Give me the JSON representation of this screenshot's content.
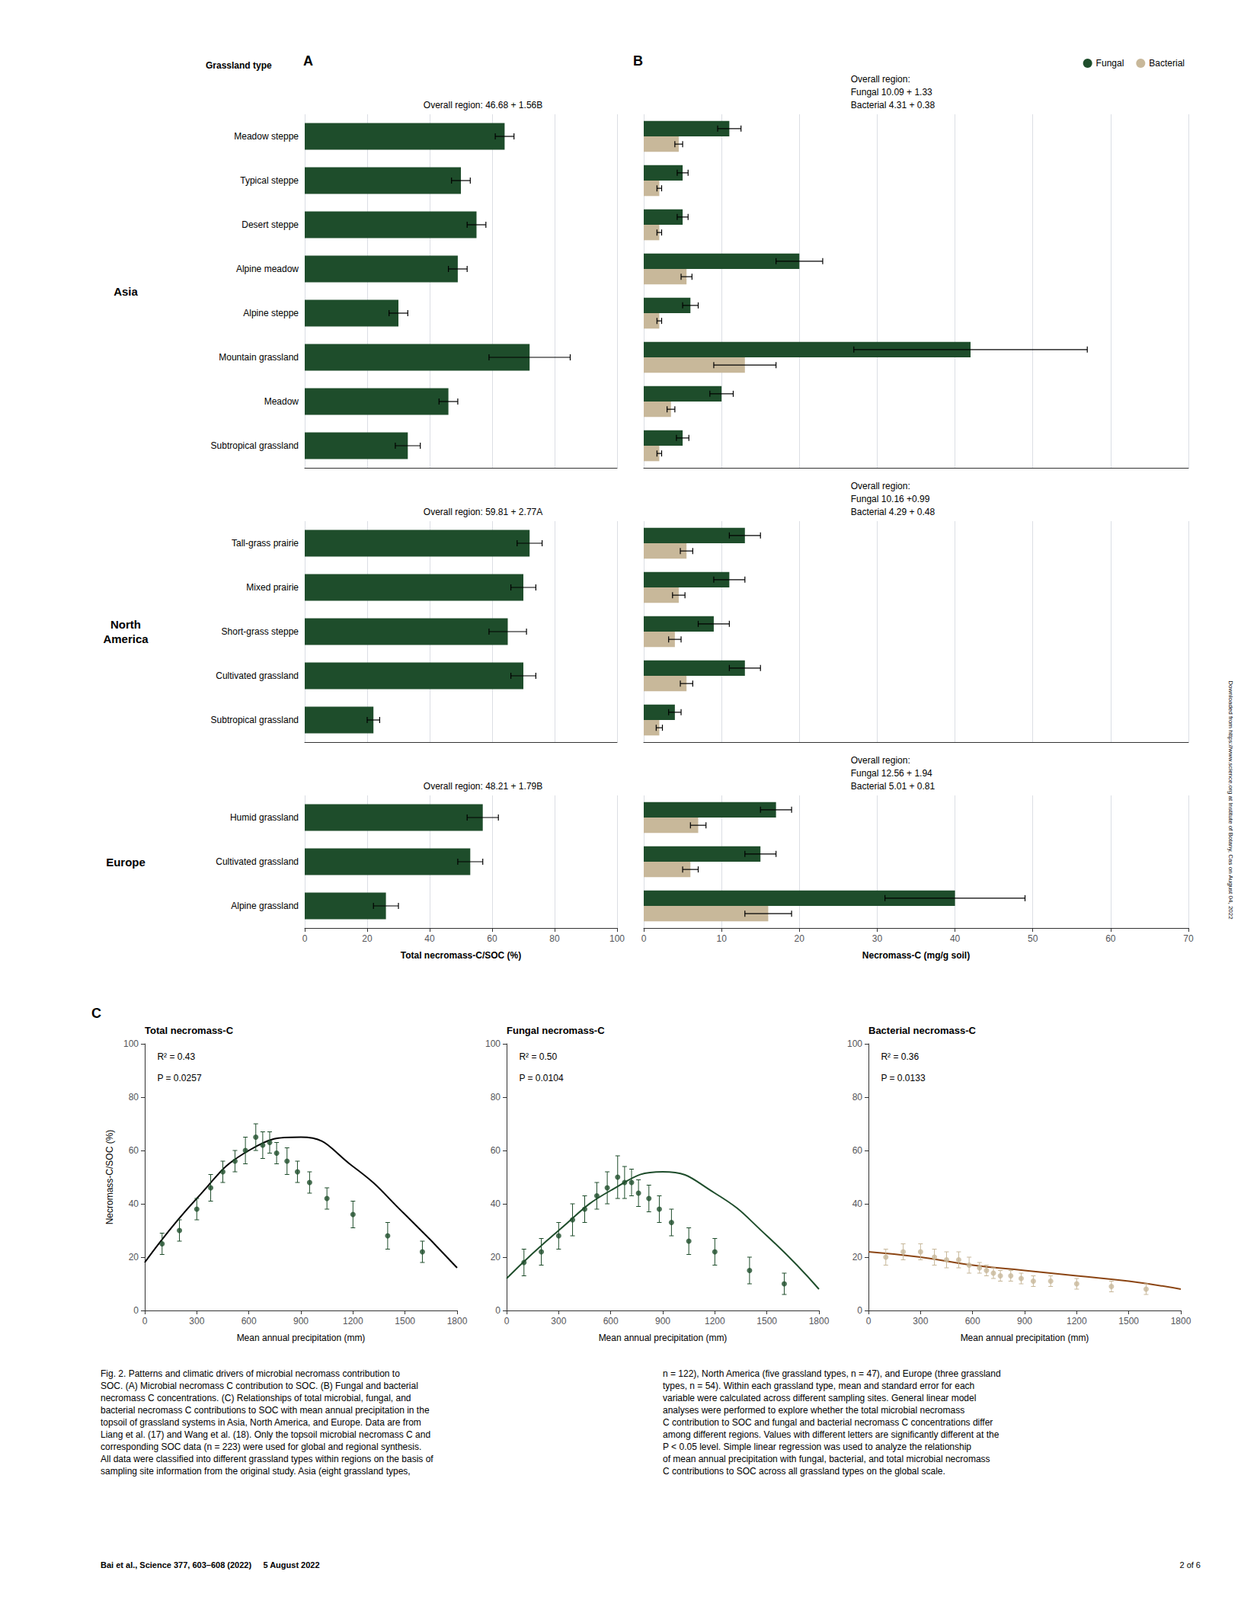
{
  "chart_data": [
    {
      "type": "bar",
      "orientation": "horizontal",
      "title": "Asia",
      "ylabel": "Grassland type",
      "annotations": [
        "A",
        "Overall region: 46.68 + 1.56B"
      ],
      "categories": [
        "Meadow steppe",
        "Typical steppe",
        "Desert steppe",
        "Alpine meadow",
        "Alpine steppe",
        "Mountain grassland",
        "Meadow",
        "Subtropical grassland"
      ],
      "values": [
        64,
        50,
        55,
        49,
        30,
        72,
        46,
        33
      ],
      "errors": [
        3,
        3,
        3,
        3,
        3,
        13,
        3,
        4
      ],
      "color": "#1e4d2b",
      "xlim": [
        0,
        100
      ],
      "xticks": [
        0,
        20,
        40,
        60,
        80,
        100
      ],
      "grid": true,
      "tick_labels": "y"
    },
    {
      "type": "bar",
      "orientation": "horizontal",
      "title": "North\nAmerica",
      "annotations": [
        "Overall region: 59.81 + 2.77A"
      ],
      "categories": [
        "Tall-grass prairie",
        "Mixed prairie",
        "Short-grass steppe",
        "Cultivated grassland",
        "Subtropical grassland"
      ],
      "values": [
        72,
        70,
        65,
        70,
        22
      ],
      "errors": [
        4,
        4,
        6,
        4,
        2
      ],
      "color": "#1e4d2b",
      "xlim": [
        0,
        100
      ],
      "xticks": [
        0,
        20,
        40,
        60,
        80,
        100
      ],
      "grid": true,
      "tick_labels": "y"
    },
    {
      "type": "bar",
      "orientation": "horizontal",
      "title": "Europe",
      "xlabel": "Total necromass-C/SOC (%)",
      "annotations": [
        "Overall region: 48.21 + 1.79B"
      ],
      "categories": [
        "Humid grassland",
        "Cultivated grassland",
        "Alpine grassland"
      ],
      "values": [
        57,
        53,
        26
      ],
      "errors": [
        5,
        4,
        4
      ],
      "color": "#1e4d2b",
      "xlim": [
        0,
        100
      ],
      "xticks": [
        0,
        20,
        40,
        60,
        80,
        100
      ],
      "grid": true
    },
    {
      "type": "bar",
      "orientation": "horizontal",
      "annotations": [
        "B",
        "Overall region:\nFungal 10.09 + 1.33\nBacterial 4.31 + 0.38"
      ],
      "categories": [
        "Meadow steppe",
        "Typical steppe",
        "Desert steppe",
        "Alpine meadow",
        "Alpine steppe",
        "Mountain grassland",
        "Meadow",
        "Subtropical grassland"
      ],
      "series": [
        {
          "name": "Fungal",
          "color": "#1e4d2b",
          "values": [
            11,
            5,
            5,
            20,
            6,
            42,
            10,
            5
          ],
          "errors": [
            1.5,
            0.7,
            0.7,
            3,
            1,
            15,
            1.5,
            0.8
          ]
        },
        {
          "name": "Bacterial",
          "color": "#c8b89a",
          "values": [
            4.5,
            2.0,
            2.0,
            5.5,
            2.0,
            13,
            3.5,
            2.0
          ],
          "errors": [
            0.5,
            0.3,
            0.3,
            0.7,
            0.3,
            4,
            0.5,
            0.3
          ]
        }
      ],
      "xlim": [
        0,
        70
      ],
      "xticks": [
        0,
        10,
        20,
        30,
        40,
        50,
        60,
        70
      ],
      "grid": true,
      "legend": "upper right",
      "tick_labels": false
    },
    {
      "type": "bar",
      "orientation": "horizontal",
      "annotations": [
        "Overall region:\nFungal 10.16 +0.99\nBacterial 4.29 + 0.48"
      ],
      "categories": [
        "Tall-grass prairie",
        "Mixed prairie",
        "Short-grass steppe",
        "Cultivated grassland",
        "Subtropical grassland"
      ],
      "series": [
        {
          "name": "Fungal",
          "color": "#1e4d2b",
          "values": [
            13,
            11,
            9,
            13,
            4
          ],
          "errors": [
            2,
            2,
            2,
            2,
            0.8
          ]
        },
        {
          "name": "Bacterial",
          "color": "#c8b89a",
          "values": [
            5.5,
            4.5,
            4,
            5.5,
            2
          ],
          "errors": [
            0.8,
            0.8,
            0.8,
            0.8,
            0.4
          ]
        }
      ],
      "xlim": [
        0,
        70
      ],
      "xticks": [
        0,
        10,
        20,
        30,
        40,
        50,
        60,
        70
      ],
      "grid": true,
      "tick_labels": false
    },
    {
      "type": "bar",
      "orientation": "horizontal",
      "xlabel": "Necromass-C (mg/g soil)",
      "annotations": [
        "Overall region:\nFungal 12.56 + 1.94\nBacterial 5.01 + 0.81"
      ],
      "categories": [
        "Humid grassland",
        "Cultivated grassland",
        "Alpine grassland"
      ],
      "series": [
        {
          "name": "Fungal",
          "color": "#1e4d2b",
          "values": [
            17,
            15,
            40
          ],
          "errors": [
            2,
            2,
            9
          ]
        },
        {
          "name": "Bacterial",
          "color": "#c8b89a",
          "values": [
            7,
            6,
            16
          ],
          "errors": [
            1,
            1,
            3
          ]
        }
      ],
      "xlim": [
        0,
        70
      ],
      "xticks": [
        0,
        10,
        20,
        30,
        40,
        50,
        60,
        70
      ],
      "grid": true,
      "tick_labels": "x"
    },
    {
      "type": "scatter",
      "title": "Total necromass-C",
      "xlabel": "Mean annual precipitation (mm)",
      "ylabel": "Necromass-C/SOC (%)",
      "annotations": [
        "C",
        "R² = 0.43",
        "P = 0.0257"
      ],
      "series": [
        {
          "type": "scatter",
          "color": "#1e4d2b",
          "x": [
            100,
            200,
            300,
            380,
            450,
            520,
            580,
            640,
            680,
            720,
            760,
            820,
            880,
            950,
            1050,
            1200,
            1400,
            1600
          ],
          "values": [
            25,
            30,
            38,
            46,
            52,
            56,
            60,
            65,
            62,
            63,
            59,
            56,
            52,
            48,
            42,
            36,
            28,
            22
          ],
          "errors": [
            4,
            4,
            4,
            5,
            4,
            4,
            5,
            5,
            5,
            4,
            4,
            5,
            4,
            4,
            4,
            5,
            5,
            4
          ]
        },
        {
          "type": "line",
          "color": "#000000",
          "x": [
            0,
            300,
            600,
            900,
            1200,
            1500,
            1800
          ],
          "values": [
            18,
            42,
            60,
            65,
            54,
            36,
            16
          ]
        }
      ],
      "xlim": [
        0,
        1800
      ],
      "xticks": [
        0,
        300,
        600,
        900,
        1200,
        1500,
        1800
      ],
      "ylim": [
        0,
        100
      ],
      "yticks": [
        0,
        20,
        40,
        60,
        80,
        100
      ],
      "grid": false
    },
    {
      "type": "scatter",
      "title": "Fungal necromass-C",
      "xlabel": "Mean annual precipitation (mm)",
      "annotations": [
        "R² = 0.50",
        "P = 0.0104"
      ],
      "series": [
        {
          "type": "scatter",
          "color": "#1e4d2b",
          "x": [
            100,
            200,
            300,
            380,
            450,
            520,
            580,
            640,
            680,
            720,
            760,
            820,
            880,
            950,
            1050,
            1200,
            1400,
            1600
          ],
          "values": [
            18,
            22,
            28,
            34,
            38,
            43,
            46,
            50,
            48,
            48,
            44,
            42,
            38,
            33,
            26,
            22,
            15,
            10
          ],
          "errors": [
            5,
            5,
            5,
            6,
            5,
            5,
            6,
            8,
            6,
            5,
            5,
            5,
            5,
            5,
            5,
            5,
            5,
            4
          ]
        },
        {
          "type": "line",
          "color": "#1e4d2b",
          "x": [
            0,
            300,
            600,
            900,
            1200,
            1500,
            1800
          ],
          "values": [
            12,
            30,
            45,
            52,
            44,
            28,
            8
          ]
        }
      ],
      "xlim": [
        0,
        1800
      ],
      "xticks": [
        0,
        300,
        600,
        900,
        1200,
        1500,
        1800
      ],
      "ylim": [
        0,
        100
      ],
      "yticks": [
        0,
        20,
        40,
        60,
        80,
        100
      ],
      "grid": false
    },
    {
      "type": "scatter",
      "title": "Bacterial necromass-C",
      "xlabel": "Mean annual precipitation (mm)",
      "annotations": [
        "R² = 0.36",
        "P = 0.0133"
      ],
      "series": [
        {
          "type": "scatter",
          "color": "#c8b89a",
          "x": [
            100,
            200,
            300,
            380,
            450,
            520,
            580,
            640,
            680,
            720,
            760,
            820,
            880,
            950,
            1050,
            1200,
            1400,
            1600
          ],
          "values": [
            20,
            22,
            22,
            20,
            19,
            19,
            17,
            16,
            15,
            14,
            13,
            13,
            12,
            11,
            11,
            10,
            9,
            8
          ],
          "errors": [
            3,
            3,
            3,
            3,
            3,
            3,
            3,
            2,
            2,
            2,
            2,
            2,
            2,
            2,
            2,
            2,
            2,
            2
          ]
        },
        {
          "type": "line",
          "color": "#8B4513",
          "x": [
            0,
            300,
            600,
            900,
            1200,
            1500,
            1800
          ],
          "values": [
            22,
            20,
            17,
            15,
            13,
            11,
            8
          ]
        }
      ],
      "xlim": [
        0,
        1800
      ],
      "xticks": [
        0,
        300,
        600,
        900,
        1200,
        1500,
        1800
      ],
      "ylim": [
        0,
        100
      ],
      "yticks": [
        0,
        20,
        40,
        60,
        80,
        100
      ],
      "grid": false
    }
  ],
  "annotations": [
    "Fig. 2. Patterns and climatic drivers of microbial necromass contribution to\nSOC. (A) Microbial necromass C contribution to SOC. (B) Fungal and bacterial\nnecromass C concentrations. (C) Relationships of total microbial, fungal, and\nbacterial necromass C contributions to SOC with mean annual precipitation in the\ntopsoil of grassland systems in Asia, North America, and Europe. Data are from\nLiang et al. (17) and Wang et al. (18). Only the topsoil microbial necromass C and\ncorresponding SOC data (n = 223) were used for global and regional synthesis.\nAll data were classified into different grassland types within regions on the basis of\nsampling site information from the original study. Asia (eight grassland types,",
    "n = 122), North America (five grassland types, n = 47), and Europe (three grassland\ntypes, n = 54). Within each grassland type, mean and standard error for each\nvariable were calculated across different sampling sites. General linear model\nanalyses were performed to explore whether the total microbial necromass\nC contribution to SOC and fungal and bacterial necromass C concentrations differ\namong different regions. Values with different letters are significantly different at the\nP < 0.05 level. Simple linear regression was used to analyze the relationship\nof mean annual precipitation with fungal, bacterial, and total microbial necromass\nC contributions to SOC across all grassland types on the global scale.",
    "Bai et al., Science 377, 603–608 (2022)     5 August 2022",
    "2 of 6",
    "Downloaded from https://www.science.org at Institute of Botany, Cas on August 04, 2022"
  ]
}
